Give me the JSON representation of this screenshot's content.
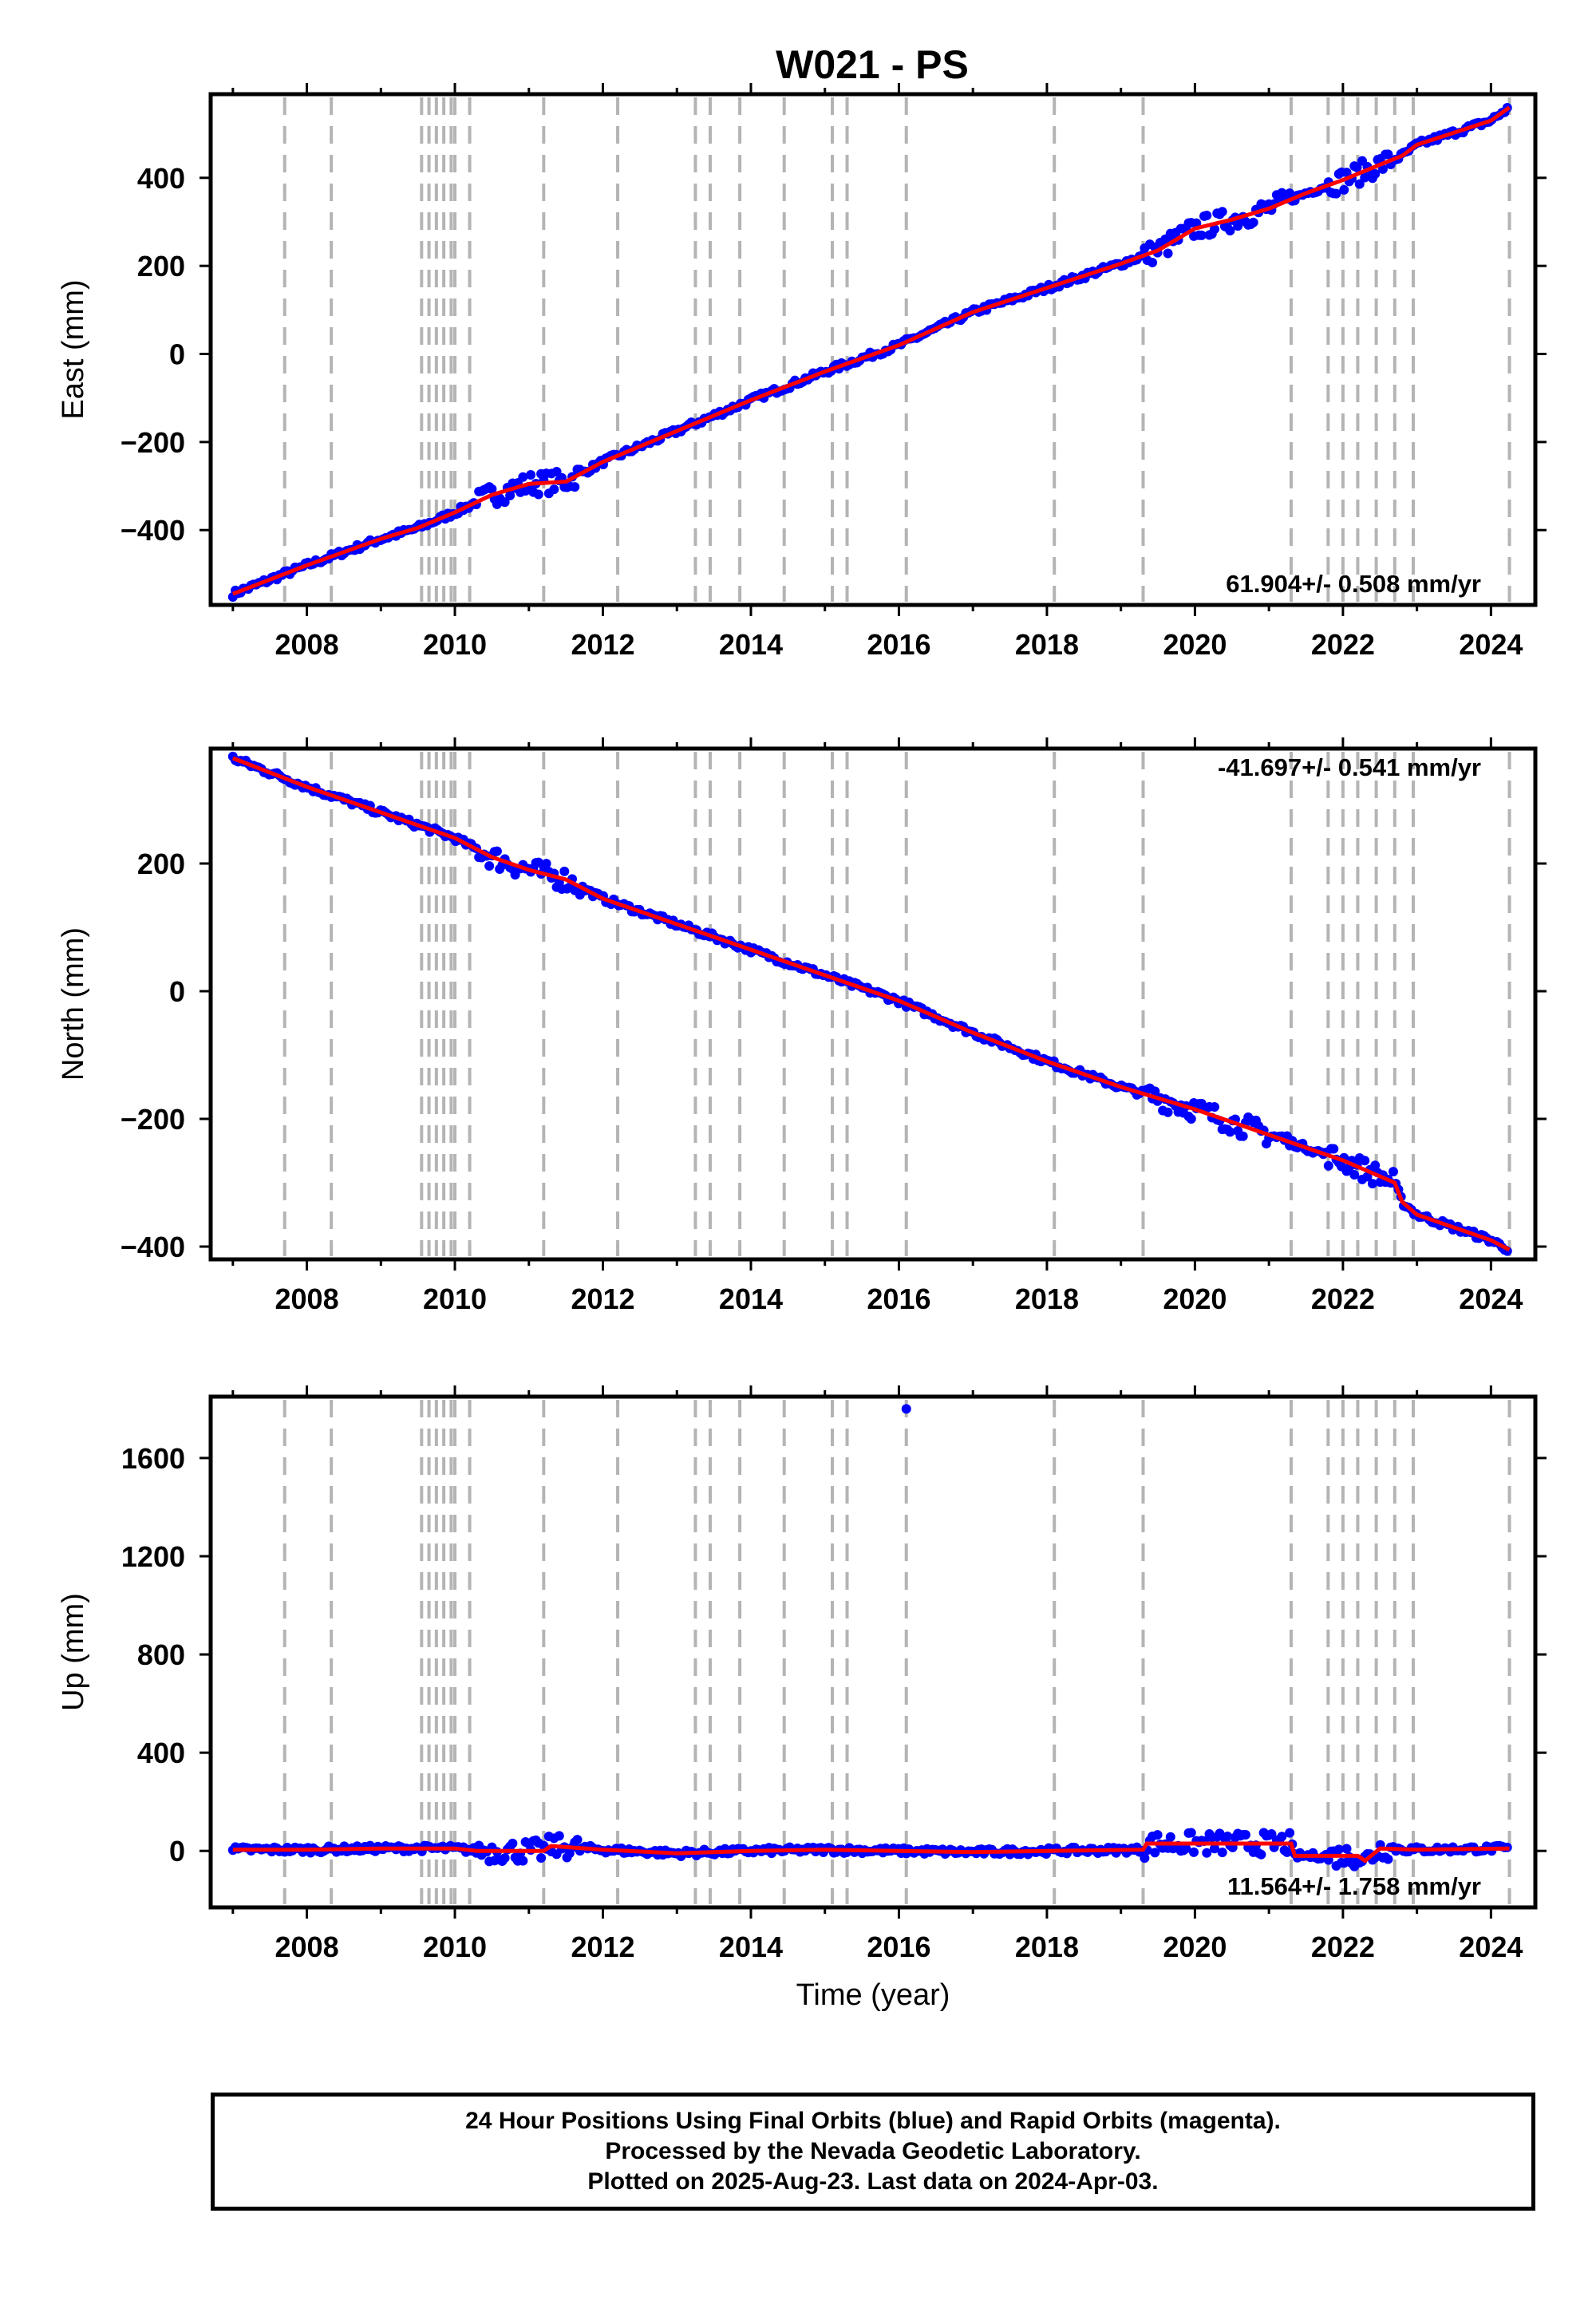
{
  "title": "W021 - PS",
  "footer": {
    "line1": "24 Hour Positions Using Final Orbits (blue) and Rapid Orbits (magenta).",
    "line2": "Processed by the Nevada Geodetic Laboratory.",
    "line3": "Plotted on 2025-Aug-23. Last data on 2024-Apr-03."
  },
  "colors": {
    "data_points": "#0000ff",
    "model_line": "#ff0000",
    "step_lines": "#b4b4b4",
    "frame": "#000000"
  },
  "chart_data": [
    {
      "type": "scatter",
      "ylabel": "East (mm)",
      "xlabel": "",
      "xlim": [
        2006.7,
        2024.6
      ],
      "ylim": [
        -570,
        590
      ],
      "xticks": [
        "2008",
        "2010",
        "2012",
        "2014",
        "2016",
        "2018",
        "2020",
        "2022",
        "2024"
      ],
      "yticks": [
        "400",
        "200",
        "0",
        "−200",
        "−400"
      ],
      "ytick_values": [
        400,
        200,
        0,
        -200,
        -400
      ],
      "rate_label": "61.904+/- 0.508 mm/yr",
      "rate_position": "bottom-right",
      "series": [
        {
          "x": [
            2007.0,
            2008.0,
            2009.0,
            2009.5,
            2010.0,
            2010.5,
            2011.0,
            2011.5,
            2012.0,
            2013.0,
            2014.0,
            2015.0,
            2016.0,
            2017.0,
            2018.0,
            2019.0,
            2019.5,
            2020.0,
            2020.5,
            2021.0,
            2021.5,
            2022.0,
            2022.5,
            2022.8,
            2023.0,
            2024.0,
            2024.25
          ],
          "y": [
            -545,
            -480,
            -420,
            -395,
            -360,
            -320,
            -295,
            -290,
            -245,
            -175,
            -105,
            -40,
            20,
            95,
            150,
            205,
            235,
            285,
            305,
            330,
            365,
            395,
            430,
            450,
            475,
            530,
            560
          ]
        }
      ],
      "noisy_intervals": [
        [
          2010.3,
          2011.7
        ],
        [
          2019.3,
          2021.3
        ],
        [
          2021.8,
          2022.7
        ]
      ],
      "step_epochs": [
        2007.7,
        2008.33,
        2009.55,
        2009.65,
        2009.75,
        2009.85,
        2009.95,
        2010.0,
        2010.2,
        2011.2,
        2012.2,
        2013.25,
        2013.45,
        2013.85,
        2014.45,
        2015.1,
        2015.3,
        2016.1,
        2018.1,
        2019.3,
        2021.3,
        2021.8,
        2022.0,
        2022.2,
        2022.45,
        2022.7,
        2022.95,
        2024.25
      ]
    },
    {
      "type": "scatter",
      "ylabel": "North (mm)",
      "xlabel": "",
      "xlim": [
        2006.7,
        2024.6
      ],
      "ylim": [
        -420,
        380
      ],
      "xticks": [
        "2008",
        "2010",
        "2012",
        "2014",
        "2016",
        "2018",
        "2020",
        "2022",
        "2024"
      ],
      "yticks": [
        "200",
        "0",
        "−200",
        "−400"
      ],
      "ytick_values": [
        200,
        0,
        -200,
        -400
      ],
      "rate_label": "-41.697+/- 0.541 mm/yr",
      "rate_position": "top-right",
      "series": [
        {
          "x": [
            2007.0,
            2008.0,
            2009.0,
            2010.0,
            2010.5,
            2011.0,
            2011.5,
            2012.0,
            2013.0,
            2014.0,
            2015.0,
            2016.0,
            2017.0,
            2018.0,
            2019.0,
            2020.0,
            2020.5,
            2021.0,
            2021.5,
            2022.0,
            2022.5,
            2022.7,
            2022.8,
            2023.0,
            2024.0,
            2024.25
          ],
          "y": [
            365,
            320,
            280,
            240,
            210,
            190,
            175,
            145,
            105,
            65,
            25,
            -15,
            -65,
            -110,
            -150,
            -185,
            -205,
            -225,
            -245,
            -265,
            -290,
            -300,
            -330,
            -350,
            -390,
            -405
          ]
        }
      ],
      "noisy_intervals": [
        [
          2010.3,
          2011.7
        ],
        [
          2019.3,
          2021.3
        ],
        [
          2021.8,
          2022.7
        ]
      ],
      "step_epochs": [
        2007.7,
        2008.33,
        2009.55,
        2009.65,
        2009.75,
        2009.85,
        2009.95,
        2010.0,
        2010.2,
        2011.2,
        2012.2,
        2013.25,
        2013.45,
        2013.85,
        2014.45,
        2015.1,
        2015.3,
        2016.1,
        2018.1,
        2019.3,
        2021.3,
        2021.8,
        2022.0,
        2022.2,
        2022.45,
        2022.7,
        2022.95,
        2024.25
      ]
    },
    {
      "type": "scatter",
      "ylabel": "Up (mm)",
      "xlabel": "Time (year)",
      "xlim": [
        2006.7,
        2024.6
      ],
      "ylim": [
        -230,
        1850
      ],
      "xticks": [
        "2008",
        "2010",
        "2012",
        "2014",
        "2016",
        "2018",
        "2020",
        "2022",
        "2024"
      ],
      "yticks": [
        "1600",
        "1200",
        "800",
        "400",
        "0"
      ],
      "ytick_values": [
        1600,
        1200,
        800,
        400,
        0
      ],
      "rate_label": "11.564+/- 1.758 mm/yr",
      "rate_position": "bottom-right",
      "series": [
        {
          "x": [
            2007.0,
            2008.0,
            2009.0,
            2010.0,
            2010.3,
            2011.2,
            2011.3,
            2012.0,
            2013.0,
            2014.0,
            2015.0,
            2016.0,
            2017.0,
            2018.0,
            2019.3,
            2019.35,
            2021.3,
            2021.35,
            2022.2,
            2022.3,
            2022.5,
            2023.0,
            2024.25
          ],
          "y": [
            5,
            5,
            10,
            10,
            0,
            0,
            20,
            5,
            -10,
            0,
            5,
            0,
            -5,
            0,
            5,
            30,
            30,
            -20,
            -20,
            -40,
            10,
            5,
            10
          ]
        }
      ],
      "outliers": [
        {
          "x": 2016.1,
          "y": 1800
        }
      ],
      "noisy_intervals": [
        [
          2010.3,
          2011.7
        ],
        [
          2019.3,
          2021.3
        ],
        [
          2021.8,
          2022.7
        ]
      ],
      "step_epochs": [
        2007.7,
        2008.33,
        2009.55,
        2009.65,
        2009.75,
        2009.85,
        2009.95,
        2010.0,
        2010.2,
        2011.2,
        2012.2,
        2013.25,
        2013.45,
        2013.85,
        2014.45,
        2015.1,
        2015.3,
        2016.1,
        2018.1,
        2019.3,
        2021.3,
        2021.8,
        2022.0,
        2022.2,
        2022.45,
        2022.7,
        2022.95,
        2024.25
      ]
    }
  ]
}
